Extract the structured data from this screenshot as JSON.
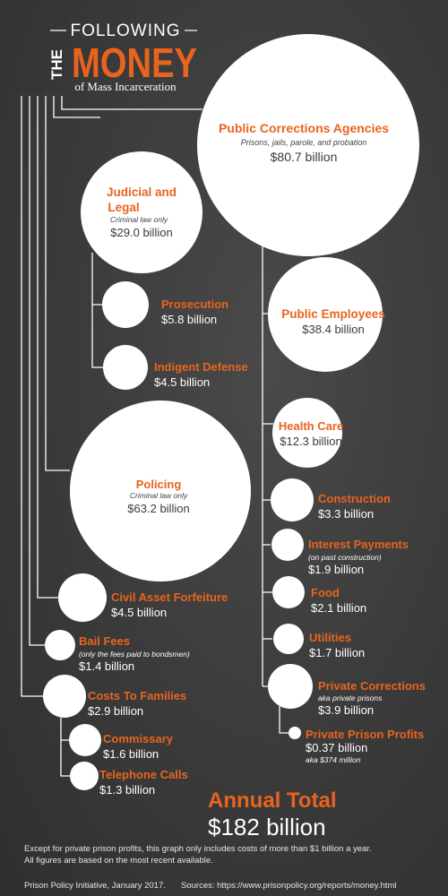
{
  "title": {
    "line1": "FOLLOWING",
    "the": "THE",
    "money": "MONEY",
    "subtitle": "of Mass Incarceration"
  },
  "colors": {
    "accent": "#e8641e",
    "background": "#3e3e3e",
    "bubble": "#ffffff",
    "lines": "#ffffff"
  },
  "chart_data": {
    "type": "bubble-tree",
    "title": "FOLLOWING THE MONEY of Mass Incarceration",
    "unit": "billion dollars",
    "nodes": [
      {
        "id": "public-corrections",
        "label": "Public Corrections Agencies",
        "note": "Prisons, jails, parole, and probation",
        "amount": "$80.7 billion",
        "value": 80.7
      },
      {
        "id": "public-employees",
        "parent": "public-corrections",
        "label": "Public Employees",
        "amount": "$38.4 billion",
        "value": 38.4
      },
      {
        "id": "health-care",
        "parent": "public-corrections",
        "label": "Health Care",
        "amount": "$12.3 billion",
        "value": 12.3
      },
      {
        "id": "construction",
        "parent": "public-corrections",
        "label": "Construction",
        "amount": "$3.3 billion",
        "value": 3.3
      },
      {
        "id": "interest-payments",
        "parent": "public-corrections",
        "label": "Interest Payments",
        "note": "(on past construction)",
        "amount": "$1.9 billion",
        "value": 1.9
      },
      {
        "id": "food",
        "parent": "public-corrections",
        "label": "Food",
        "amount": "$2.1 billion",
        "value": 2.1
      },
      {
        "id": "utilities",
        "parent": "public-corrections",
        "label": "Utilities",
        "amount": "$1.7 billion",
        "value": 1.7
      },
      {
        "id": "private-corrections",
        "parent": "public-corrections",
        "label": "Private Corrections",
        "note": "aka private prisons",
        "amount": "$3.9 billion",
        "value": 3.9
      },
      {
        "id": "private-prison-profits",
        "parent": "private-corrections",
        "label": "Private Prison Profits",
        "amount": "$0.37 billion",
        "note2": "aka $374 million",
        "value": 0.37
      },
      {
        "id": "judicial-legal",
        "label": "Judicial and Legal",
        "note": "Criminal law only",
        "amount": "$29.0 billion",
        "value": 29.0
      },
      {
        "id": "prosecution",
        "parent": "judicial-legal",
        "label": "Prosecution",
        "amount": "$5.8 billion",
        "value": 5.8
      },
      {
        "id": "indigent-defense",
        "parent": "judicial-legal",
        "label": "Indigent Defense",
        "amount": "$4.5 billion",
        "value": 4.5
      },
      {
        "id": "policing",
        "label": "Policing",
        "note": "Criminal law only",
        "amount": "$63.2 billion",
        "value": 63.2
      },
      {
        "id": "civil-asset-forfeiture",
        "label": "Civil Asset Forfeiture",
        "amount": "$4.5 billion",
        "value": 4.5
      },
      {
        "id": "bail-fees",
        "label": "Bail Fees",
        "note": "(only the fees paid to bondsmen)",
        "amount": "$1.4 billion",
        "value": 1.4
      },
      {
        "id": "costs-to-families",
        "label": "Costs To Families",
        "amount": "$2.9 billion",
        "value": 2.9
      },
      {
        "id": "commissary",
        "parent": "costs-to-families",
        "label": "Commissary",
        "amount": "$1.6 billion",
        "value": 1.6
      },
      {
        "id": "telephone-calls",
        "parent": "costs-to-families",
        "label": "Telephone Calls",
        "amount": "$1.3 billion",
        "value": 1.3
      }
    ],
    "total": {
      "label": "Annual Total",
      "amount": "$182 billion",
      "value": 182
    }
  },
  "footer": {
    "note_line1": "Except for private prison profits, this graph only includes costs of more than $1 billion a year.",
    "note_line2": "All figures are based on the most recent available.",
    "credit": "Prison Policy Initiative, January 2017.",
    "sources": "Sources: https://www.prisonpolicy.org/reports/money.html"
  }
}
